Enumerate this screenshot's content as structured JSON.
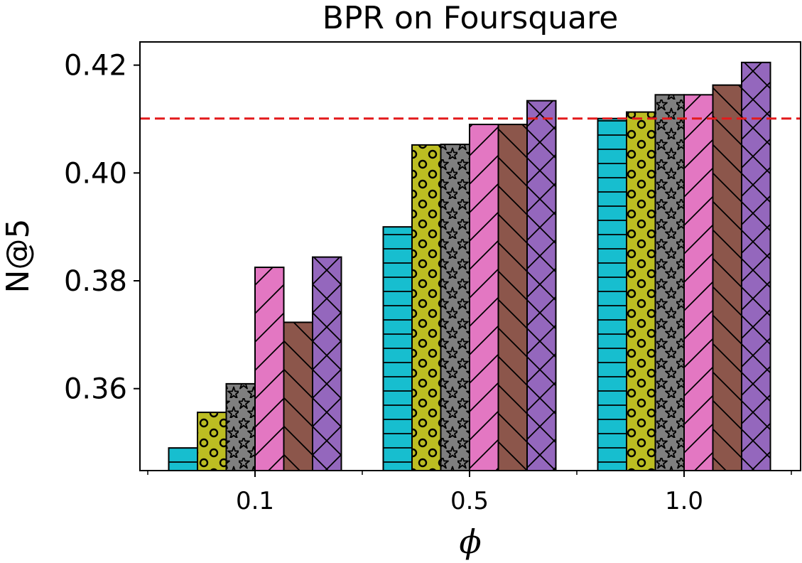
{
  "chart_data": {
    "type": "bar",
    "title": "BPR on Foursquare",
    "xlabel": "ϕ",
    "ylabel": "N@5",
    "categories": [
      "0.1",
      "0.5",
      "1.0"
    ],
    "ylim": [
      0.3448,
      0.4243
    ],
    "yticks": [
      "0.36",
      "0.38",
      "0.40",
      "0.42"
    ],
    "ytick_values": [
      0.36,
      0.38,
      0.4,
      0.42
    ],
    "grid": false,
    "legend": "none",
    "reference_line": {
      "value": 0.4101,
      "color": "#e31a1c",
      "style": "dashed"
    },
    "series": [
      {
        "color": "#17becf",
        "pattern": "horizontal-lines",
        "values": [
          0.349,
          0.39,
          0.4101
        ]
      },
      {
        "color": "#bcbd22",
        "pattern": "circles",
        "values": [
          0.3556,
          0.4052,
          0.4113
        ]
      },
      {
        "color": "#7f7f7f",
        "pattern": "stars",
        "values": [
          0.3609,
          0.4053,
          0.4145
        ]
      },
      {
        "color": "#e377c2",
        "pattern": "forward-diagonal",
        "values": [
          0.3825,
          0.409,
          0.4145
        ]
      },
      {
        "color": "#8c564b",
        "pattern": "back-diagonal",
        "values": [
          0.3723,
          0.409,
          0.4163
        ]
      },
      {
        "color": "#9467bd",
        "pattern": "crosshatch",
        "values": [
          0.3844,
          0.4134,
          0.4205
        ]
      }
    ]
  }
}
